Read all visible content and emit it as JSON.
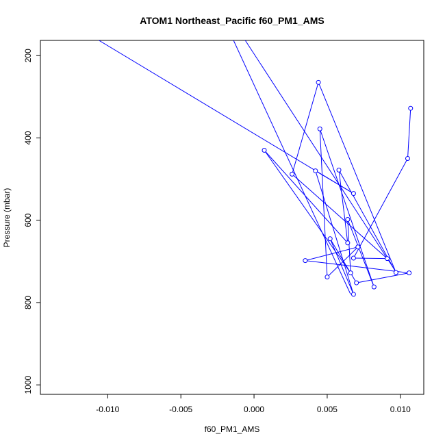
{
  "chart_data": {
    "type": "line",
    "title": "ATOM1 Northeast_Pacific f60_PM1_AMS",
    "xlabel": "f60_PM1_AMS",
    "ylabel": "Pressure (mbar)",
    "xlim": [
      -0.0146,
      0.0116
    ],
    "ylim": [
      1023,
      163
    ],
    "y_reversed": true,
    "grid": false,
    "legend": "none",
    "x_ticks": [
      -0.01,
      -0.005,
      0.0,
      0.005,
      0.01
    ],
    "x_tick_labels": [
      "-0.010",
      "-0.005",
      "0.000",
      "0.005",
      "0.010"
    ],
    "y_ticks": [
      200,
      400,
      600,
      800,
      1000
    ],
    "y_tick_labels": [
      "200",
      "400",
      "600",
      "800",
      "1000"
    ],
    "color": "#0000ff",
    "series": [
      {
        "points": [
          {
            "x": -0.0106,
            "y": 163
          },
          {
            "x": 0.0068,
            "y": 535
          },
          {
            "x": 0.0042,
            "y": 480
          },
          {
            "x": 0.0068,
            "y": 780
          },
          {
            "x": 0.0052,
            "y": 645
          },
          {
            "x": 0.007,
            "y": 752
          },
          {
            "x": 0.0106,
            "y": 728
          },
          {
            "x": 0.0035,
            "y": 698
          },
          {
            "x": 0.0071,
            "y": 665
          },
          {
            "x": 0.005,
            "y": 738
          },
          {
            "x": 0.0045,
            "y": 378
          },
          {
            "x": 0.0082,
            "y": 762
          },
          {
            "x": 0.0064,
            "y": 598
          },
          {
            "x": 0.0066,
            "y": 728
          },
          {
            "x": 0.0007,
            "y": 430
          },
          {
            "x": 0.0064,
            "y": 655
          },
          {
            "x": 0.0058,
            "y": 478
          },
          {
            "x": 0.0097,
            "y": 727
          },
          {
            "x": 0.0044,
            "y": 265
          },
          {
            "x": 0.0026,
            "y": 488
          },
          {
            "x": 0.0091,
            "y": 693
          },
          {
            "x": 0.0068,
            "y": 692
          },
          {
            "x": 0.0105,
            "y": 450
          },
          {
            "x": 0.0107,
            "y": 328
          }
        ]
      }
    ],
    "extra_segments": [
      {
        "from": {
          "x": -0.0014,
          "y": 163
        },
        "to": {
          "x": 0.0066,
          "y": 780
        }
      },
      {
        "from": {
          "x": -0.0006,
          "y": 163
        },
        "to": {
          "x": 0.0096,
          "y": 720
        }
      }
    ]
  }
}
